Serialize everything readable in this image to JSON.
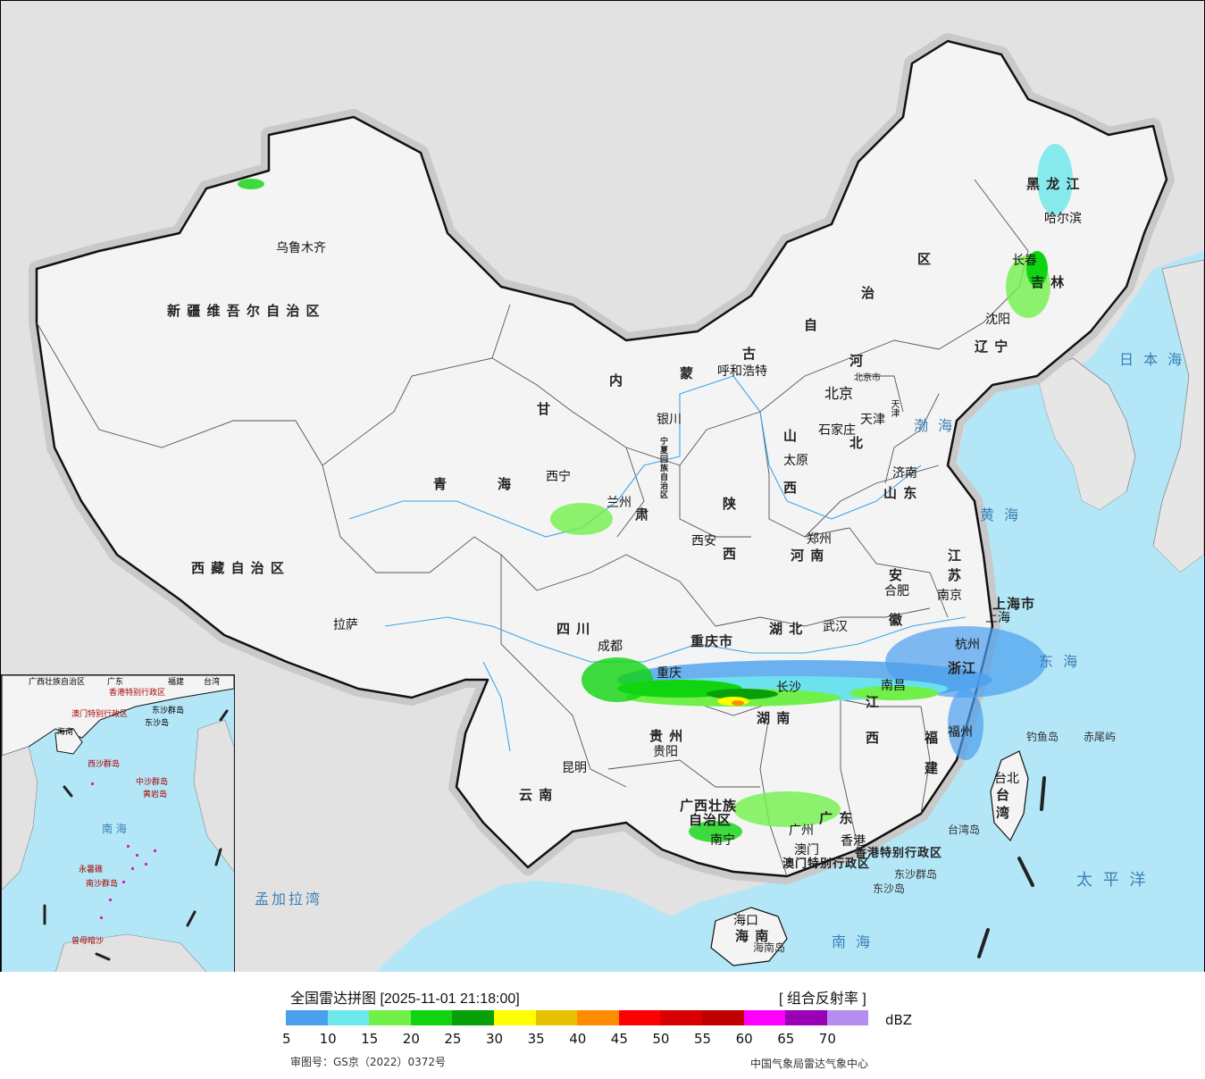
{
  "map": {
    "provinces": [
      {
        "id": "xinjiang",
        "label": "新 疆 维 吾 尔 自 治 区"
      },
      {
        "id": "xizang",
        "label": "西 藏 自 治 区"
      },
      {
        "id": "qinghai-1",
        "label": "青"
      },
      {
        "id": "qinghai-2",
        "label": "海"
      },
      {
        "id": "gansu-1",
        "label": "甘"
      },
      {
        "id": "gansu-2",
        "label": "肃"
      },
      {
        "id": "neimenggu-1",
        "label": "内"
      },
      {
        "id": "neimenggu-2",
        "label": "蒙"
      },
      {
        "id": "neimenggu-3",
        "label": "古"
      },
      {
        "id": "neimenggu-4",
        "label": "自"
      },
      {
        "id": "neimenggu-5",
        "label": "治"
      },
      {
        "id": "neimenggu-6",
        "label": "区"
      },
      {
        "id": "heilongjiang",
        "label": "黑  龙  江"
      },
      {
        "id": "jilin",
        "label": "吉  林"
      },
      {
        "id": "liaoning",
        "label": "辽  宁"
      },
      {
        "id": "hebei-1",
        "label": "河"
      },
      {
        "id": "hebei-2",
        "label": "北"
      },
      {
        "id": "shanxi-1",
        "label": "山"
      },
      {
        "id": "shanxi-2",
        "label": "西"
      },
      {
        "id": "shaanxi-1",
        "label": "陕"
      },
      {
        "id": "shaanxi-2",
        "label": "西"
      },
      {
        "id": "shandong",
        "label": "山  东"
      },
      {
        "id": "henan",
        "label": "河  南"
      },
      {
        "id": "jiangsu-1",
        "label": "江"
      },
      {
        "id": "jiangsu-2",
        "label": "苏"
      },
      {
        "id": "anhui-1",
        "label": "安"
      },
      {
        "id": "anhui-2",
        "label": "徽"
      },
      {
        "id": "hubei",
        "label": "湖    北"
      },
      {
        "id": "sichuan",
        "label": "四    川"
      },
      {
        "id": "chongqing",
        "label": "重庆市"
      },
      {
        "id": "hunan",
        "label": "湖    南"
      },
      {
        "id": "jiangxi-1",
        "label": "江"
      },
      {
        "id": "jiangxi-2",
        "label": "西"
      },
      {
        "id": "zhejiang",
        "label": "浙江"
      },
      {
        "id": "fujian-1",
        "label": "福"
      },
      {
        "id": "fujian-2",
        "label": "建"
      },
      {
        "id": "guizhou",
        "label": "贵  州"
      },
      {
        "id": "yunnan",
        "label": "云    南"
      },
      {
        "id": "guangxi-1",
        "label": "广西壮族"
      },
      {
        "id": "guangxi-2",
        "label": "自治区"
      },
      {
        "id": "guangdong",
        "label": "广  东"
      },
      {
        "id": "hainan",
        "label": "海  南"
      },
      {
        "id": "taiwan-1",
        "label": "台"
      },
      {
        "id": "taiwan-2",
        "label": "湾"
      },
      {
        "id": "shanghai",
        "label": "上海市"
      },
      {
        "id": "ningxia",
        "label": "宁夏回族自治区"
      },
      {
        "id": "hk",
        "label": "香港特别行政区"
      },
      {
        "id": "macau",
        "label": "澳门特别行政区"
      }
    ],
    "cities": [
      {
        "id": "urumqi",
        "label": "乌鲁木齐"
      },
      {
        "id": "lhasa",
        "label": "拉萨"
      },
      {
        "id": "xining",
        "label": "西宁"
      },
      {
        "id": "lanzhou",
        "label": "兰州"
      },
      {
        "id": "yinchuan",
        "label": "银川"
      },
      {
        "id": "hohhot",
        "label": "呼和浩特"
      },
      {
        "id": "beijing",
        "label": "北京"
      },
      {
        "id": "beijing-shi",
        "label": "北京市"
      },
      {
        "id": "tianjin",
        "label": "天津"
      },
      {
        "id": "tianjin-shi",
        "label": "天津"
      },
      {
        "id": "shijiazhuang",
        "label": "石家庄"
      },
      {
        "id": "taiyuan",
        "label": "太原"
      },
      {
        "id": "jinan",
        "label": "济南"
      },
      {
        "id": "zhengzhou",
        "label": "郑州"
      },
      {
        "id": "xian",
        "label": "西安"
      },
      {
        "id": "harbin",
        "label": "哈尔滨"
      },
      {
        "id": "changchun",
        "label": "长春"
      },
      {
        "id": "shenyang",
        "label": "沈阳"
      },
      {
        "id": "nanjing",
        "label": "南京"
      },
      {
        "id": "hefei",
        "label": "合肥"
      },
      {
        "id": "shanghai-c",
        "label": "上海"
      },
      {
        "id": "hangzhou",
        "label": "杭州"
      },
      {
        "id": "wuhan",
        "label": "武汉"
      },
      {
        "id": "chengdu",
        "label": "成都"
      },
      {
        "id": "chongqing-c",
        "label": "重庆"
      },
      {
        "id": "changsha",
        "label": "长沙"
      },
      {
        "id": "nanchang",
        "label": "南昌"
      },
      {
        "id": "fuzhou",
        "label": "福州"
      },
      {
        "id": "guiyang",
        "label": "贵阳"
      },
      {
        "id": "kunming",
        "label": "昆明"
      },
      {
        "id": "nanning",
        "label": "南宁"
      },
      {
        "id": "guangzhou",
        "label": "广州"
      },
      {
        "id": "hongkong",
        "label": "香港"
      },
      {
        "id": "macao",
        "label": "澳门"
      },
      {
        "id": "haikou",
        "label": "海口"
      },
      {
        "id": "taipei",
        "label": "台北"
      }
    ],
    "seas": [
      {
        "id": "bohai",
        "label": "渤 海"
      },
      {
        "id": "huanghai",
        "label": "黄 海"
      },
      {
        "id": "donghai",
        "label": "东 海"
      },
      {
        "id": "nanhai",
        "label": "南 海"
      },
      {
        "id": "riben",
        "label": "日 本 海"
      },
      {
        "id": "taiping",
        "label": "太 平 洋"
      },
      {
        "id": "mengjiala",
        "label": "孟加拉湾"
      }
    ],
    "islands": [
      {
        "id": "diaoyu",
        "label": "钓鱼岛"
      },
      {
        "id": "chiwei",
        "label": "赤尾屿"
      },
      {
        "id": "taiwan-dao",
        "label": "台湾岛"
      },
      {
        "id": "dongsha-qd",
        "label": "东沙群岛"
      },
      {
        "id": "dongsha-d",
        "label": "东沙岛"
      },
      {
        "id": "hainan-dao",
        "label": "海南岛"
      }
    ],
    "inset": {
      "labels": [
        {
          "id": "in-guangxi",
          "label": "广西壮族自治区"
        },
        {
          "id": "in-guangdong",
          "label": "广东"
        },
        {
          "id": "in-fujian",
          "label": "福建"
        },
        {
          "id": "in-taiwan",
          "label": "台湾"
        },
        {
          "id": "in-hk",
          "label": "香港特别行政区"
        },
        {
          "id": "in-macau",
          "label": "澳门特别行政区"
        },
        {
          "id": "in-dongsha",
          "label": "东沙群岛"
        },
        {
          "id": "in-dongshadao",
          "label": "东沙岛"
        },
        {
          "id": "in-hainan",
          "label": "海南"
        },
        {
          "id": "in-xisha",
          "label": "西沙群岛"
        },
        {
          "id": "in-zhongsha",
          "label": "中沙群岛"
        },
        {
          "id": "in-huangyan",
          "label": "黄岩岛"
        },
        {
          "id": "in-nanhai",
          "label": "南 海"
        },
        {
          "id": "in-yongshu",
          "label": "永暑礁"
        },
        {
          "id": "in-nansha",
          "label": "南沙群岛"
        },
        {
          "id": "in-zengmu",
          "label": "曾母暗沙"
        }
      ]
    }
  },
  "legend": {
    "title": "全国雷达拼图 [2025-11-01 21:18:00]",
    "product": "[ 组合反射率 ]",
    "unit": "dBZ",
    "colors": [
      "#4aa0ee",
      "#6ce8ec",
      "#72f04a",
      "#10d410",
      "#08a008",
      "#ffff00",
      "#e6c200",
      "#ff8c00",
      "#ff0000",
      "#d80000",
      "#c00000",
      "#ff00ff",
      "#9a00b4",
      "#b58cf0"
    ],
    "ticks": [
      "5",
      "10",
      "15",
      "20",
      "25",
      "30",
      "35",
      "40",
      "45",
      "50",
      "55",
      "60",
      "65",
      "70"
    ],
    "approval": "审图号：GS京（2022）0372号",
    "agency": "中国气象局雷达气象中心"
  }
}
